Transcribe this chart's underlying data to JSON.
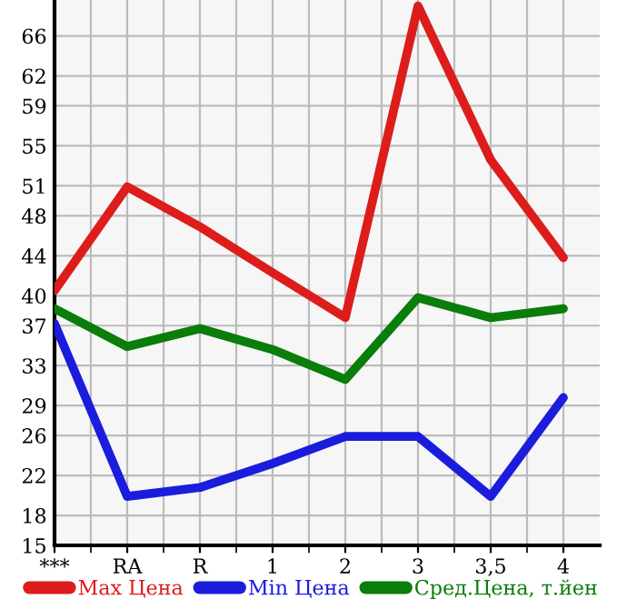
{
  "chart_data": {
    "type": "line",
    "categories": [
      "***",
      "RA",
      "R",
      "1",
      "2",
      "3",
      "3,5",
      "4"
    ],
    "series": [
      {
        "name": "Max Цена",
        "color": "#dd1c1c",
        "values": [
          40.5,
          50.9,
          46.9,
          42.3,
          37.8,
          69,
          53.6,
          43.8
        ]
      },
      {
        "name": "Min Цена",
        "color": "#1c1cdd",
        "values": [
          37.2,
          19.9,
          20.8,
          23.2,
          25.9,
          25.9,
          19.9,
          29.8
        ]
      },
      {
        "name": "Сред.Цена, т.йен",
        "color": "#0a7d0a",
        "values": [
          38.7,
          34.9,
          36.7,
          34.6,
          31.6,
          39.8,
          37.8,
          38.7
        ]
      }
    ],
    "ylim": [
      15,
      69.6
    ],
    "yticks": [
      15,
      18,
      22,
      26,
      29,
      33,
      37,
      40,
      44,
      48,
      51,
      55,
      59,
      62,
      66
    ],
    "grid": true,
    "legend": "bottom",
    "marker": "none",
    "line_style": "solid"
  }
}
